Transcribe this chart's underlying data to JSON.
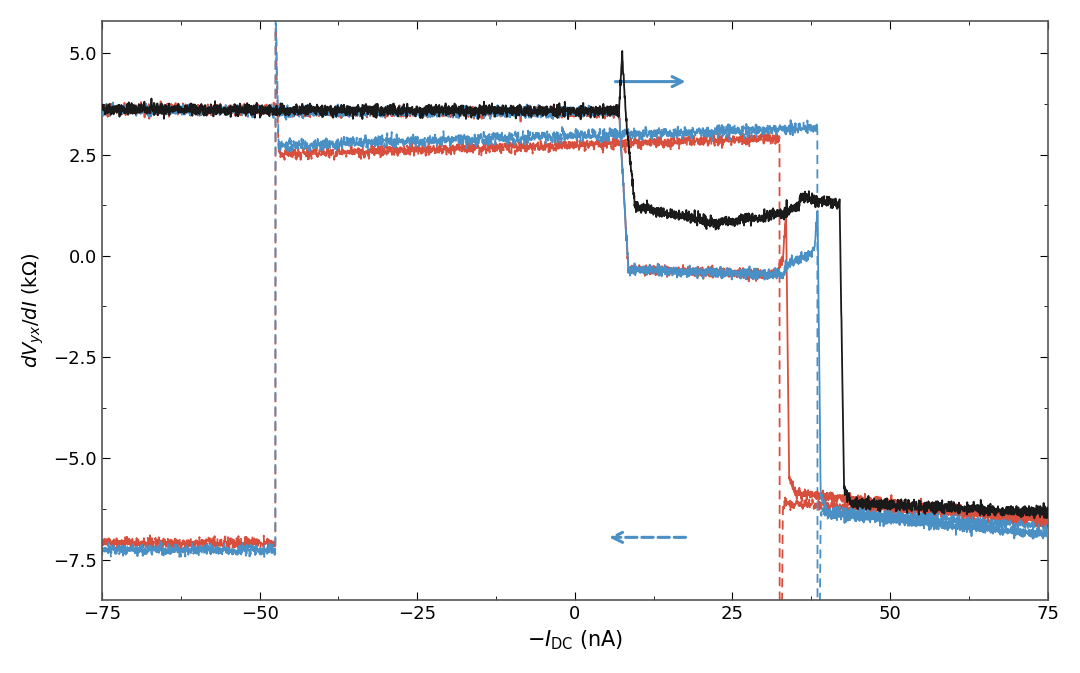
{
  "title": "",
  "xlabel": "$-I_{\\mathrm{DC}}$ (nA)",
  "ylabel": "$dV_{yx}/dI$ (k$\\Omega$)",
  "xlim": [
    -75,
    75
  ],
  "ylim": [
    -8.5,
    5.8
  ],
  "yticks": [
    -7.5,
    -5.0,
    -2.5,
    0.0,
    2.5,
    5.0
  ],
  "xticks": [
    -75,
    -50,
    -25,
    0,
    25,
    50,
    75
  ],
  "bg_color": "#ffffff",
  "plot_bg_color": "#ffffff",
  "color_black": "#1a1a1a",
  "color_blue": "#4a90c4",
  "color_red": "#d94f3d",
  "linewidth": 1.3,
  "noise_amp": 0.07
}
